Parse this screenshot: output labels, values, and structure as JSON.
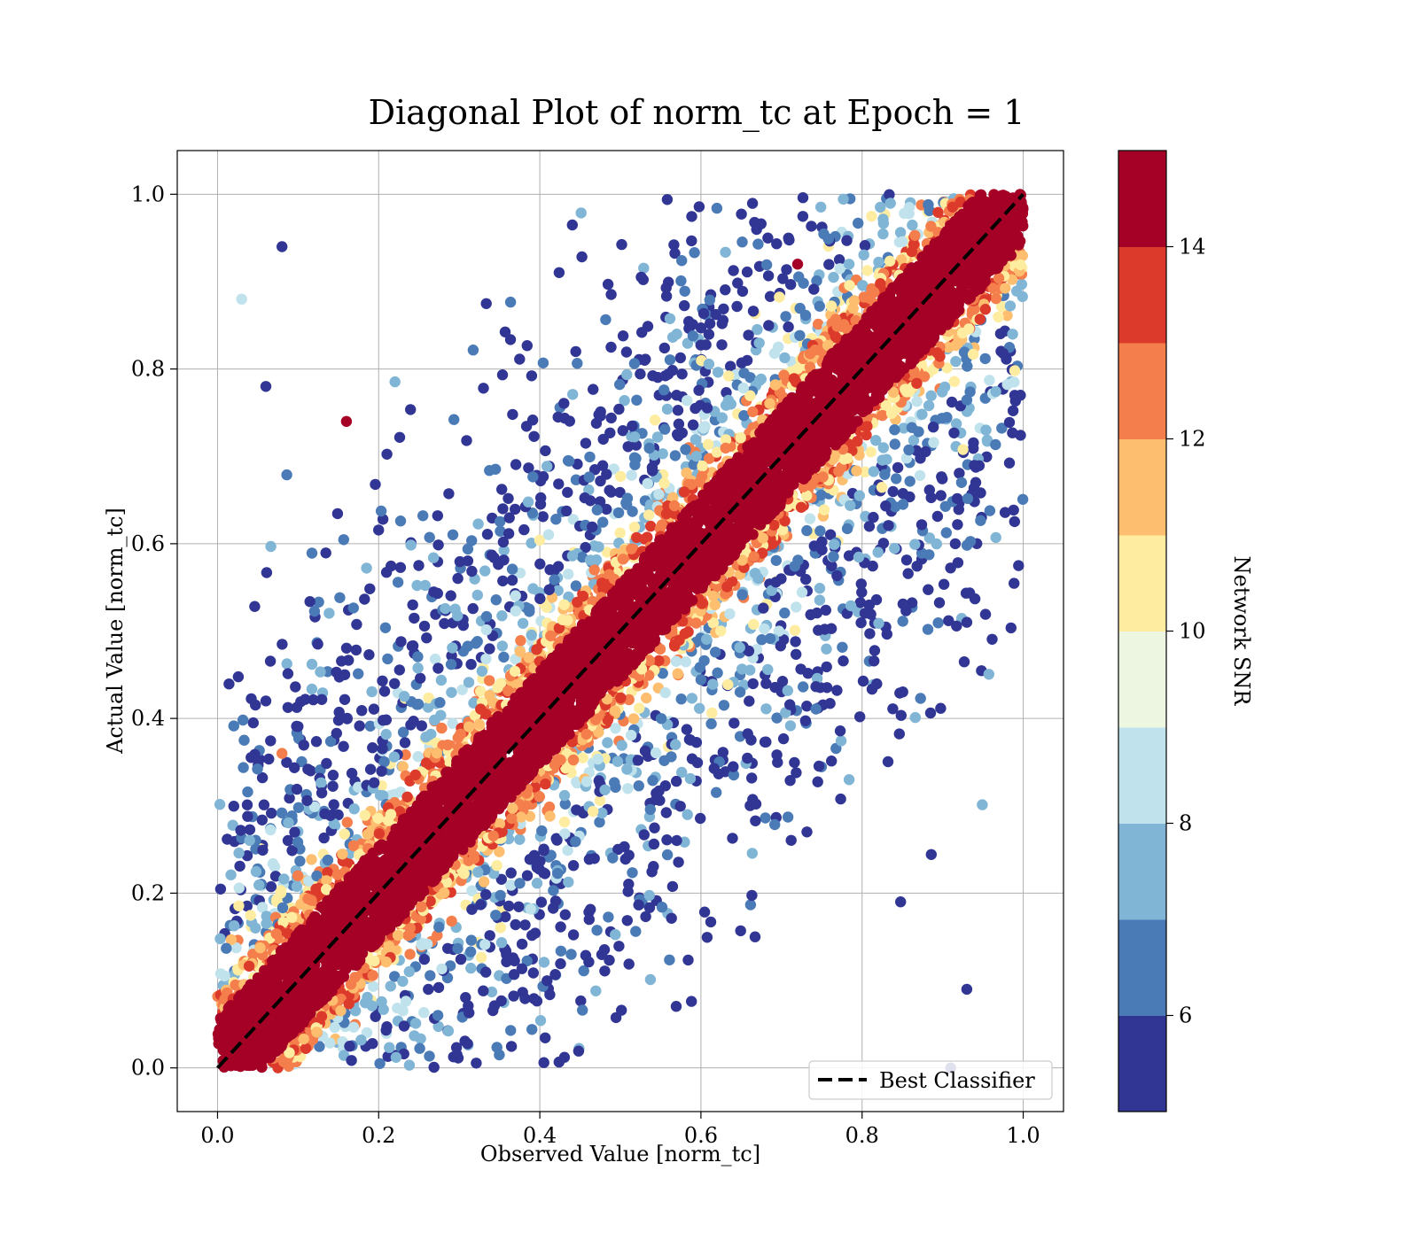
{
  "chart_data": {
    "type": "scatter",
    "title": "Diagonal Plot of norm_tc at Epoch = 1",
    "xlabel": "Observed Value [norm_tc]",
    "ylabel": "Actual Value [norm_tc]",
    "xlim": [
      -0.05,
      1.05
    ],
    "ylim": [
      -0.05,
      1.05
    ],
    "xticks": [
      "0.0",
      "0.2",
      "0.4",
      "0.6",
      "0.8",
      "1.0"
    ],
    "yticks": [
      "0.0",
      "0.2",
      "0.4",
      "0.6",
      "0.8",
      "1.0"
    ],
    "grid": true,
    "legend": {
      "placement": "lower-right",
      "entries": [
        {
          "label": "Best Classifier",
          "style": "black dashed line"
        }
      ]
    },
    "reference_line": {
      "name": "Best Classifier",
      "x": [
        0.0,
        1.0
      ],
      "y": [
        0.0,
        1.0
      ],
      "color": "#000000",
      "dash": "dashed"
    },
    "colorbar": {
      "label": "Network SNR",
      "range": [
        5,
        15
      ],
      "ticks": [
        "6",
        "8",
        "10",
        "12",
        "14"
      ],
      "bins": [
        {
          "from": 5,
          "to": 6,
          "color": "#313695"
        },
        {
          "from": 6,
          "to": 7,
          "color": "#4a7bb7"
        },
        {
          "from": 7,
          "to": 8,
          "color": "#80b5d6"
        },
        {
          "from": 8,
          "to": 9,
          "color": "#bfe2ec"
        },
        {
          "from": 9,
          "to": 10,
          "color": "#ecf6e0"
        },
        {
          "from": 10,
          "to": 11,
          "color": "#feeda1"
        },
        {
          "from": 11,
          "to": 12,
          "color": "#fdbe70"
        },
        {
          "from": 12,
          "to": 13,
          "color": "#f47e4c"
        },
        {
          "from": 13,
          "to": 14,
          "color": "#dc3a2b"
        },
        {
          "from": 14,
          "to": 15,
          "color": "#a50026"
        }
      ]
    },
    "point_cloud": {
      "description_of_distribution": "dense high-SNR band around the diagonal, lower-SNR points scattered further from it",
      "core_band_halfwidth": 0.055,
      "outlier_count": 2600
    },
    "sample_points": [
      {
        "x": 0.03,
        "y": 0.88,
        "snr": 8
      },
      {
        "x": 0.06,
        "y": 0.78,
        "snr": 5
      },
      {
        "x": 0.08,
        "y": 0.94,
        "snr": 5
      },
      {
        "x": 0.16,
        "y": 0.74,
        "snr": 14
      },
      {
        "x": 0.08,
        "y": 0.36,
        "snr": 12
      },
      {
        "x": 0.06,
        "y": 0.42,
        "snr": 5
      },
      {
        "x": 0.93,
        "y": 0.51,
        "snr": 5
      },
      {
        "x": 0.93,
        "y": 0.09,
        "snr": 5
      },
      {
        "x": 0.91,
        "y": 0.0,
        "snr": 5
      },
      {
        "x": 0.72,
        "y": 0.92,
        "snr": 14
      }
    ]
  }
}
